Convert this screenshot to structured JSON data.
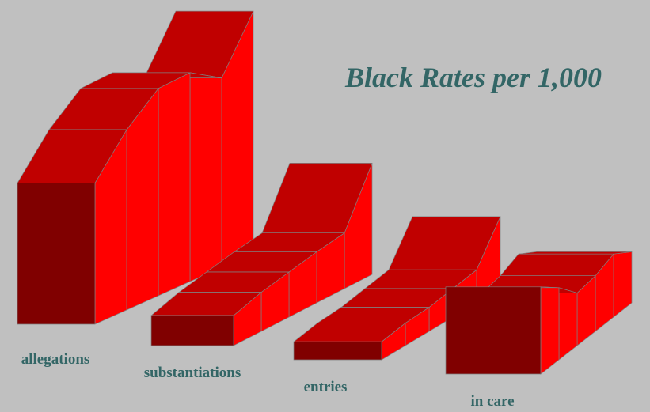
{
  "chart_data": {
    "type": "ribbon3d",
    "title": "Black Rates per 1,000",
    "front_color": "#800000",
    "top_color": "#c00000",
    "side_color": "#ff0000",
    "series": [
      {
        "name": "allegations",
        "values": [
          94,
          120,
          138,
          139,
          126,
          161
        ]
      },
      {
        "name": "substantiations",
        "values": [
          20,
          26,
          30,
          34,
          37,
          74
        ]
      },
      {
        "name": "entries",
        "values": [
          12,
          15,
          16,
          19,
          22,
          48
        ]
      },
      {
        "name": "in care",
        "values": [
          58,
          48,
          35,
          37,
          42,
          34
        ]
      }
    ]
  }
}
